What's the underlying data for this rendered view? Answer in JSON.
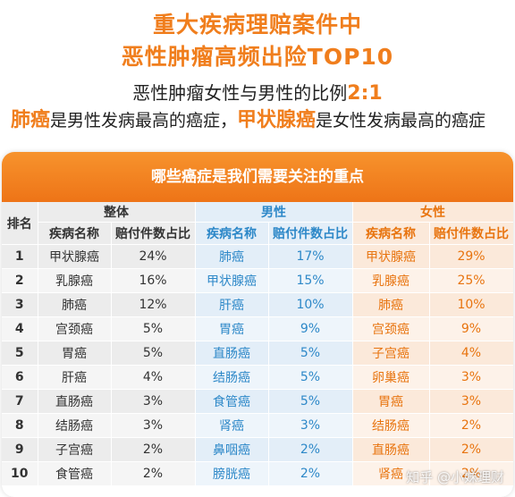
{
  "title_line1": "重大疾病理赔案件中",
  "title_line2": "恶性肿瘤高频出险TOP10",
  "subtitle_prefix": "恶性肿瘤女性与男性的比例",
  "subtitle_ratio": "2:1",
  "line2_hl1": "肺癌",
  "line2_mid1": "是男性发病最高的癌症，",
  "line2_hl2": "甲状腺癌",
  "line2_mid2": "是女性发病最高的癌症",
  "banner": "哪些癌症是我们需要关注的重点",
  "headers": {
    "rank": "排名",
    "overall": "整体",
    "male": "男性",
    "female": "女性",
    "disease": "疾病名称",
    "ratio": "赔付件数占比"
  },
  "rows": [
    {
      "rank": "1",
      "o_name": "甲状腺癌",
      "o_pct": "24%",
      "m_name": "肺癌",
      "m_pct": "17%",
      "f_name": "甲状腺癌",
      "f_pct": "29%"
    },
    {
      "rank": "2",
      "o_name": "乳腺癌",
      "o_pct": "16%",
      "m_name": "甲状腺癌",
      "m_pct": "15%",
      "f_name": "乳腺癌",
      "f_pct": "25%"
    },
    {
      "rank": "3",
      "o_name": "肺癌",
      "o_pct": "12%",
      "m_name": "肝癌",
      "m_pct": "10%",
      "f_name": "肺癌",
      "f_pct": "10%"
    },
    {
      "rank": "4",
      "o_name": "宫颈癌",
      "o_pct": "5%",
      "m_name": "胃癌",
      "m_pct": "9%",
      "f_name": "宫颈癌",
      "f_pct": "9%"
    },
    {
      "rank": "5",
      "o_name": "胃癌",
      "o_pct": "5%",
      "m_name": "直肠癌",
      "m_pct": "5%",
      "f_name": "子宫癌",
      "f_pct": "4%"
    },
    {
      "rank": "6",
      "o_name": "肝癌",
      "o_pct": "4%",
      "m_name": "结肠癌",
      "m_pct": "5%",
      "f_name": "卵巢癌",
      "f_pct": "3%"
    },
    {
      "rank": "7",
      "o_name": "直肠癌",
      "o_pct": "3%",
      "m_name": "食管癌",
      "m_pct": "5%",
      "f_name": "胃癌",
      "f_pct": "3%"
    },
    {
      "rank": "8",
      "o_name": "结肠癌",
      "o_pct": "3%",
      "m_name": "肾癌",
      "m_pct": "3%",
      "f_name": "结肠癌",
      "f_pct": "2%"
    },
    {
      "rank": "9",
      "o_name": "子宫癌",
      "o_pct": "2%",
      "m_name": "鼻咽癌",
      "m_pct": "2%",
      "f_name": "直肠癌",
      "f_pct": "2%"
    },
    {
      "rank": "10",
      "o_name": "食管癌",
      "o_pct": "2%",
      "m_name": "膀胱癌",
      "m_pct": "2%",
      "f_name": "肾癌",
      "f_pct": "2%"
    }
  ],
  "watermark": "知乎 @小妹理财"
}
